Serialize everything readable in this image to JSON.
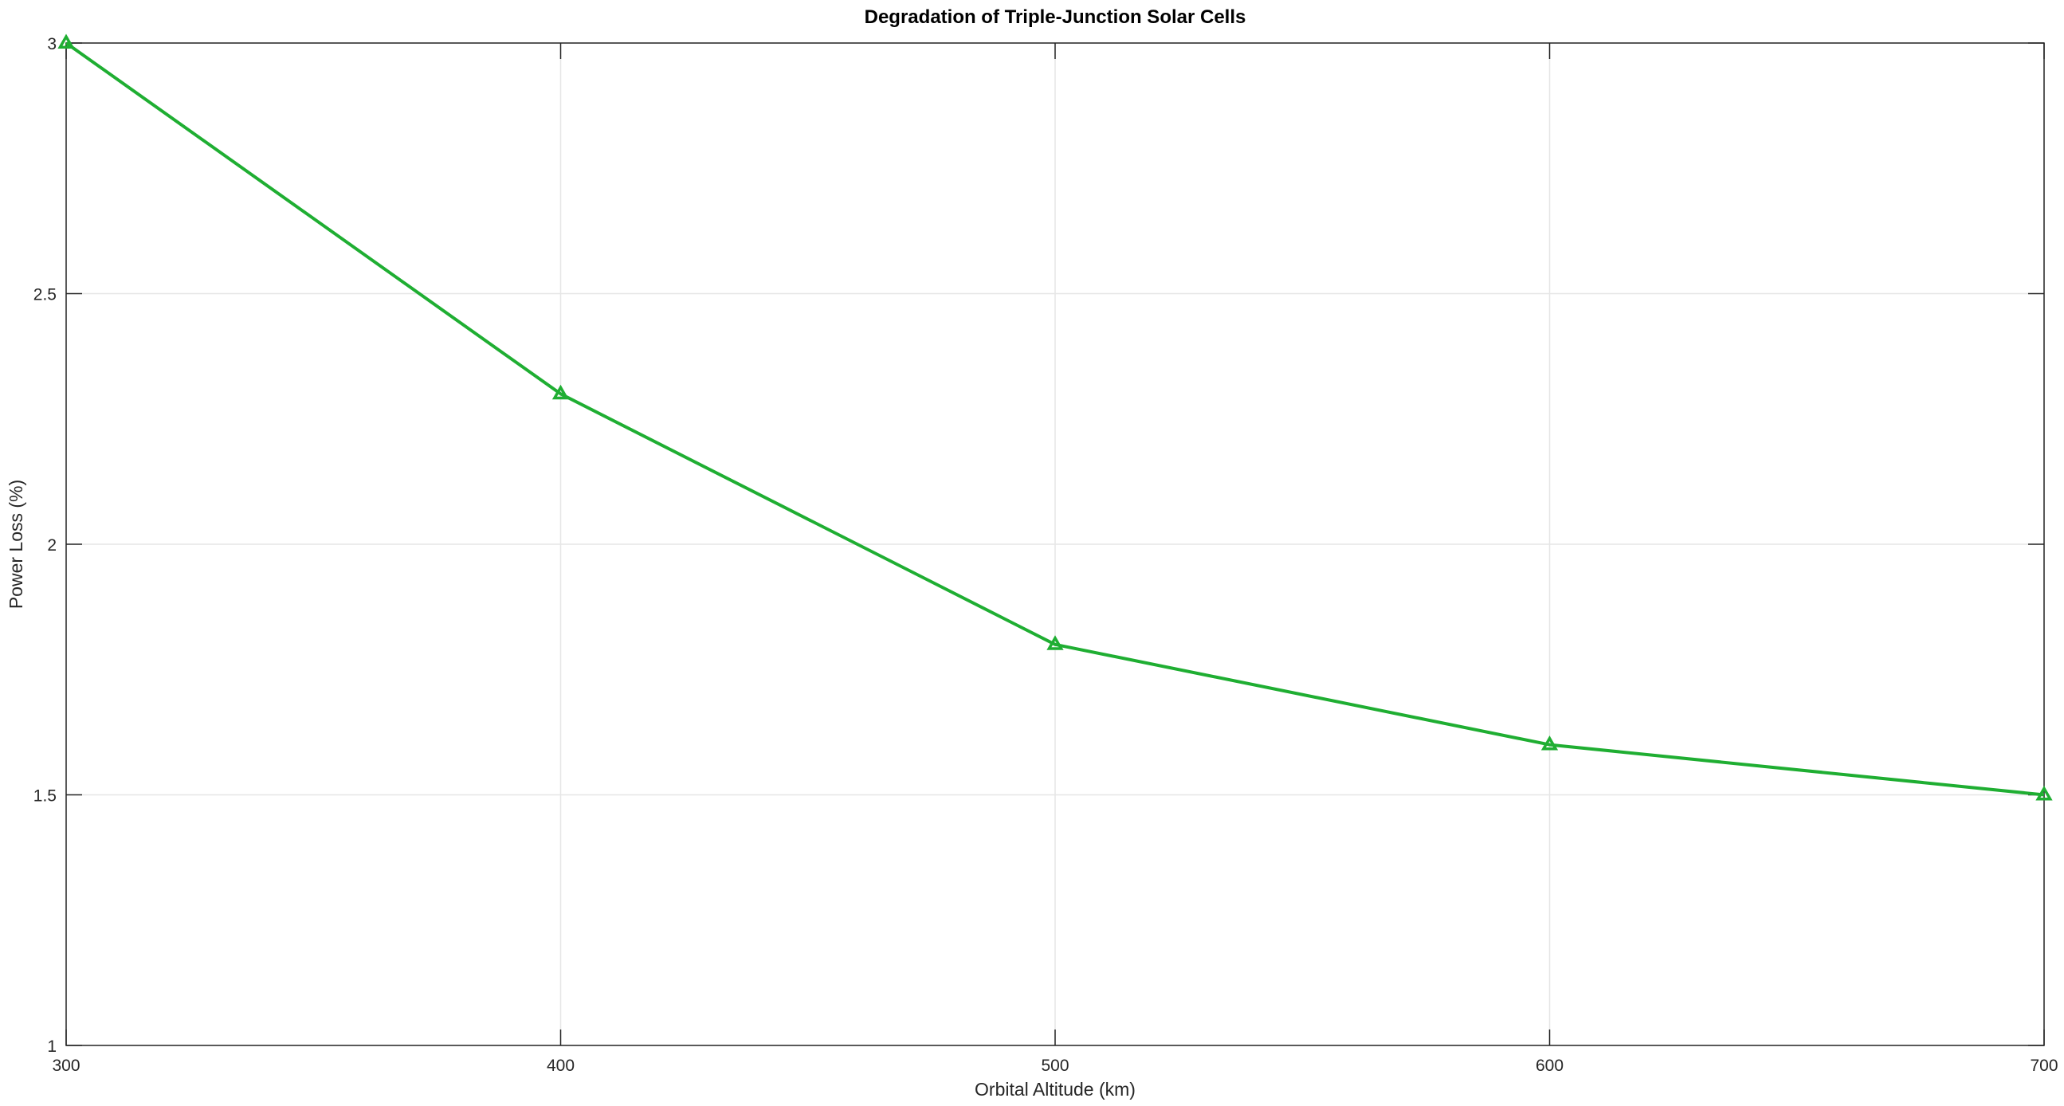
{
  "chart_data": {
    "type": "line",
    "title": "Degradation of Triple-Junction Solar Cells",
    "xlabel": "Orbital Altitude (km)",
    "ylabel": "Power Loss (%)",
    "x": [
      300,
      400,
      500,
      600,
      700
    ],
    "series": [
      {
        "values": [
          3.0,
          2.3,
          1.8,
          1.6,
          1.5
        ],
        "color": "#1fae32",
        "marker": "triangle"
      }
    ],
    "xlim": [
      300,
      700
    ],
    "ylim": [
      1,
      3
    ],
    "xticks": [
      "300",
      "400",
      "500",
      "600",
      "700"
    ],
    "yticks": [
      "1",
      "1.5",
      "2",
      "2.5",
      "3"
    ],
    "grid": true,
    "legend": "none"
  }
}
